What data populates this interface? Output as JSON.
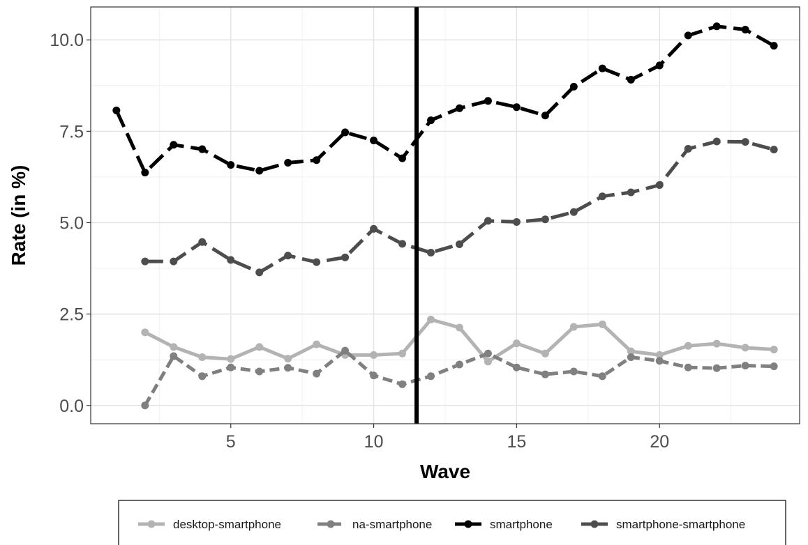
{
  "chart_data": {
    "type": "line",
    "title": "",
    "xlabel": "Wave",
    "ylabel": "Rate (in %)",
    "xlim": [
      0.1,
      24.9
    ],
    "ylim": [
      -0.5,
      10.9
    ],
    "x_ticks": [
      5,
      10,
      15,
      20
    ],
    "x_tick_labels": [
      "5",
      "10",
      "15",
      "20"
    ],
    "y_ticks": [
      0,
      2.5,
      5,
      7.5,
      10
    ],
    "y_tick_labels": [
      "0.0",
      "2.5",
      "5.0",
      "7.5",
      "10.0"
    ],
    "grid": true,
    "legend_position": "bottom",
    "vertical_line_x": 11.5,
    "series": [
      {
        "name": "desktop-smartphone",
        "color": "#b3b3b3",
        "dash": "solid",
        "x": [
          2,
          3,
          4,
          5,
          6,
          7,
          8,
          9,
          10,
          11,
          12,
          13,
          14,
          15,
          16,
          17,
          18,
          19,
          20,
          21,
          22,
          23,
          24
        ],
        "values": [
          2.0,
          1.6,
          1.32,
          1.27,
          1.6,
          1.28,
          1.67,
          1.38,
          1.38,
          1.42,
          2.35,
          2.13,
          1.2,
          1.7,
          1.42,
          2.15,
          2.22,
          1.48,
          1.38,
          1.63,
          1.69,
          1.58,
          1.53
        ]
      },
      {
        "name": "na-smartphone",
        "color": "#808080",
        "dash": "short",
        "x": [
          2,
          3,
          4,
          5,
          6,
          7,
          8,
          9,
          10,
          11,
          12,
          13,
          14,
          15,
          16,
          17,
          18,
          19,
          20,
          21,
          22,
          23,
          24
        ],
        "values": [
          0.0,
          1.35,
          0.8,
          1.04,
          0.93,
          1.03,
          0.87,
          1.5,
          0.82,
          0.58,
          0.8,
          1.12,
          1.42,
          1.04,
          0.85,
          0.93,
          0.8,
          1.32,
          1.22,
          1.04,
          1.02,
          1.09,
          1.07
        ]
      },
      {
        "name": "smartphone",
        "color": "#000000",
        "dash": "long",
        "x": [
          1,
          2,
          3,
          4,
          5,
          6,
          7,
          8,
          9,
          10,
          11,
          12,
          13,
          14,
          15,
          16,
          17,
          18,
          19,
          20,
          21,
          22,
          23,
          24
        ],
        "values": [
          8.07,
          6.37,
          7.13,
          7.01,
          6.58,
          6.42,
          6.64,
          6.71,
          7.47,
          7.25,
          6.76,
          7.8,
          8.13,
          8.33,
          8.16,
          7.93,
          8.72,
          9.22,
          8.91,
          9.3,
          10.12,
          10.37,
          10.28,
          9.84
        ]
      },
      {
        "name": "smartphone-smartphone",
        "color": "#4d4d4d",
        "dash": "long",
        "x": [
          2,
          3,
          4,
          5,
          6,
          7,
          8,
          9,
          10,
          11,
          12,
          13,
          14,
          15,
          16,
          17,
          18,
          19,
          20,
          21,
          22,
          23,
          24
        ],
        "values": [
          3.94,
          3.94,
          4.47,
          3.98,
          3.64,
          4.1,
          3.92,
          4.05,
          4.83,
          4.42,
          4.18,
          4.41,
          5.05,
          5.02,
          5.09,
          5.29,
          5.72,
          5.83,
          6.03,
          7.02,
          7.22,
          7.21,
          7.0
        ]
      }
    ]
  }
}
